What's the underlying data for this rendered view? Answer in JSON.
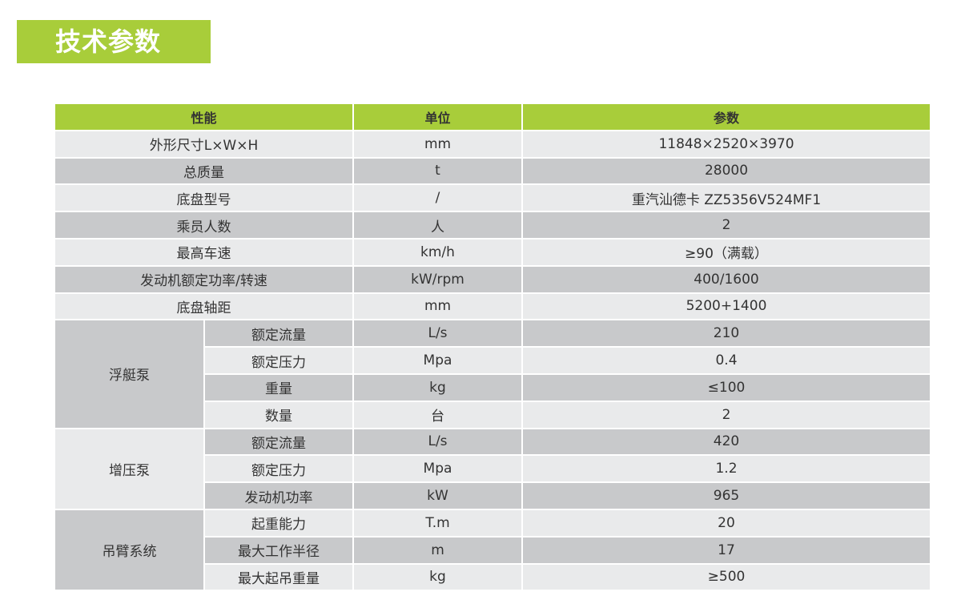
{
  "title": "技术参数",
  "colors": {
    "accent": "#a8cd3a",
    "row_light": "#e9eaeb",
    "row_dark": "#c8c9cb"
  },
  "headers": [
    "性能",
    "单位",
    "参数"
  ],
  "rows": [
    {
      "name": "外形尺寸L×W×H",
      "unit": "mm",
      "value": "11848×2520×3970"
    },
    {
      "name": "总质量",
      "unit": "t",
      "value": "28000"
    },
    {
      "name": "底盘型号",
      "unit": "/",
      "value": "重汽汕德卡 ZZ5356V524MF1"
    },
    {
      "name": "乘员人数",
      "unit": "人",
      "value": "2"
    },
    {
      "name": "最高车速",
      "unit": "km/h",
      "value": "≥90（满载）"
    },
    {
      "name": "发动机额定功率/转速",
      "unit": "kW/rpm",
      "value": "400/1600"
    },
    {
      "name": "底盘轴距",
      "unit": "mm",
      "value": "5200+1400"
    }
  ],
  "groups": [
    {
      "name": "浮艇泵",
      "items": [
        {
          "name": "额定流量",
          "unit": "L/s",
          "value": "210"
        },
        {
          "name": "额定压力",
          "unit": "Mpa",
          "value": "0.4"
        },
        {
          "name": "重量",
          "unit": "kg",
          "value": "≤100"
        },
        {
          "name": "数量",
          "unit": "台",
          "value": "2"
        }
      ]
    },
    {
      "name": "增压泵",
      "items": [
        {
          "name": "额定流量",
          "unit": "L/s",
          "value": "420"
        },
        {
          "name": "额定压力",
          "unit": "Mpa",
          "value": "1.2"
        },
        {
          "name": "发动机功率",
          "unit": "kW",
          "value": "965"
        }
      ]
    },
    {
      "name": "吊臂系统",
      "items": [
        {
          "name": "起重能力",
          "unit": "T.m",
          "value": "20"
        },
        {
          "name": "最大工作半径",
          "unit": "m",
          "value": "17"
        },
        {
          "name": "最大起吊重量",
          "unit": "kg",
          "value": "≥500"
        }
      ]
    }
  ]
}
